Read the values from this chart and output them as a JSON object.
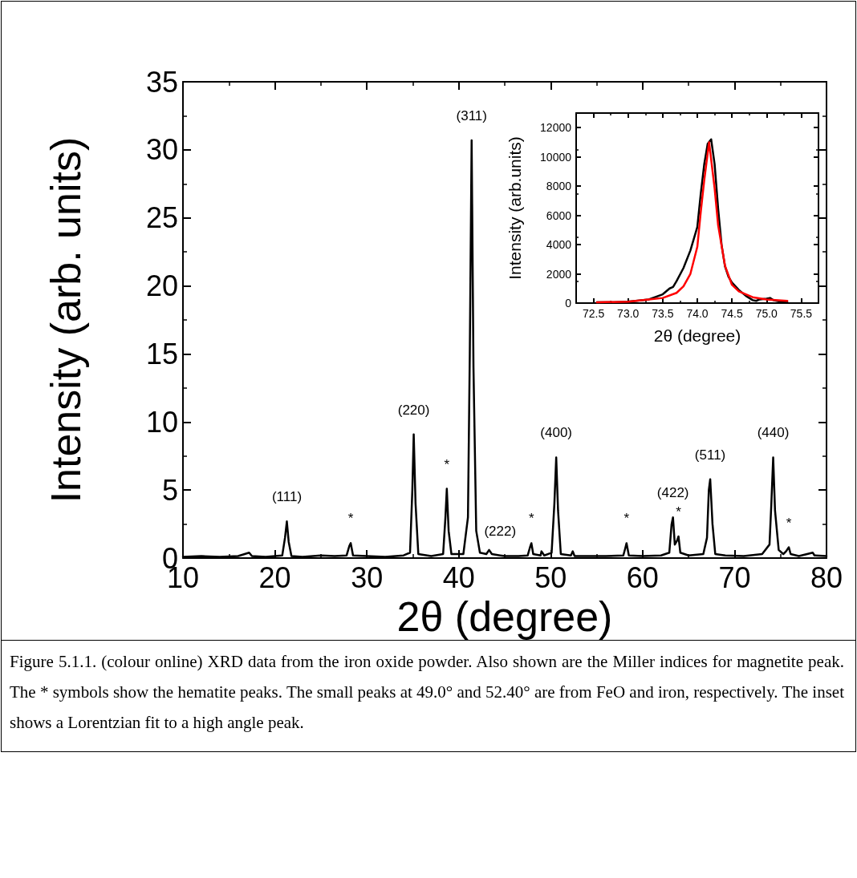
{
  "chart_data": [
    {
      "type": "line",
      "xlabel": "2θ (degree)",
      "ylabel": "Intensity (arb. units)",
      "xlim": [
        10,
        80
      ],
      "xticks": [
        10,
        20,
        30,
        40,
        50,
        60,
        70,
        80
      ],
      "ylim": [
        0,
        35
      ],
      "yticks": [
        0,
        5,
        10,
        15,
        20,
        25,
        30,
        35
      ],
      "grid": false,
      "marker": "none",
      "line_style": "solid",
      "series": [
        {
          "color": "#000000",
          "x": [
            10,
            12,
            14,
            16,
            17.2,
            17.5,
            19,
            20.8,
            21.1,
            21.3,
            21.5,
            21.8,
            23,
            25,
            26.5,
            27.8,
            28.1,
            28.25,
            28.5,
            30,
            32,
            34,
            34.7,
            34.95,
            35.1,
            35.3,
            35.6,
            37,
            38.3,
            38.55,
            38.7,
            38.9,
            39.2,
            40.5,
            41.0,
            41.2,
            41.4,
            41.6,
            41.9,
            42.3,
            43.0,
            43.3,
            43.6,
            44.5,
            45,
            46.5,
            47.5,
            47.75,
            47.9,
            48.1,
            48.9,
            49.0,
            49.3,
            50.1,
            50.4,
            50.6,
            50.8,
            51.1,
            52.2,
            52.4,
            52.6,
            54,
            56,
            57.9,
            58.1,
            58.25,
            58.5,
            60,
            62,
            62.9,
            63.15,
            63.3,
            63.5,
            63.75,
            63.9,
            64.1,
            65,
            66.6,
            67.0,
            67.2,
            67.35,
            67.6,
            67.9,
            69,
            71,
            73,
            73.8,
            74.0,
            74.2,
            74.4,
            74.8,
            75.3,
            75.6,
            75.9,
            76.1,
            77,
            78.5,
            78.7,
            80
          ],
          "values": [
            0.1,
            0.15,
            0.1,
            0.15,
            0.4,
            0.15,
            0.1,
            0.2,
            1.5,
            2.7,
            1.2,
            0.15,
            0.1,
            0.2,
            0.15,
            0.2,
            0.9,
            1.1,
            0.2,
            0.15,
            0.1,
            0.2,
            0.4,
            5,
            9.1,
            4,
            0.3,
            0.15,
            0.3,
            3,
            5.1,
            2,
            0.3,
            0.3,
            3,
            15,
            30.7,
            14,
            2,
            0.4,
            0.3,
            0.6,
            0.3,
            0.2,
            0.15,
            0.15,
            0.2,
            0.8,
            1.1,
            0.3,
            0.2,
            0.5,
            0.2,
            0.4,
            4,
            7.4,
            3.5,
            0.3,
            0.2,
            0.5,
            0.15,
            0.15,
            0.15,
            0.2,
            0.7,
            1.1,
            0.2,
            0.15,
            0.2,
            0.4,
            2.5,
            3.0,
            1.0,
            1.3,
            1.6,
            0.4,
            0.2,
            0.3,
            1.5,
            5,
            5.8,
            2.5,
            0.3,
            0.2,
            0.15,
            0.3,
            1.0,
            4,
            7.4,
            3.5,
            0.6,
            0.3,
            0.5,
            0.8,
            0.3,
            0.15,
            0.4,
            0.2,
            0.15
          ]
        }
      ],
      "annotations": [
        {
          "text": "(111)",
          "x": 21.3,
          "y": 2.7
        },
        {
          "text": "*",
          "x": 28.25,
          "y": 1.1
        },
        {
          "text": "(220)",
          "x": 35.1,
          "y": 9.1
        },
        {
          "text": "*",
          "x": 38.7,
          "y": 5.1
        },
        {
          "text": "(311)",
          "x": 41.4,
          "y": 30.7
        },
        {
          "text": "(222)",
          "x": 44.5,
          "y": 0.2
        },
        {
          "text": "*",
          "x": 47.9,
          "y": 1.1
        },
        {
          "text": "(400)",
          "x": 50.6,
          "y": 7.4
        },
        {
          "text": "*",
          "x": 58.25,
          "y": 1.1
        },
        {
          "text": "(422)",
          "x": 63.3,
          "y": 3.0
        },
        {
          "text": "*",
          "x": 63.9,
          "y": 1.6
        },
        {
          "text": "(511)",
          "x": 67.35,
          "y": 5.8
        },
        {
          "text": "(440)",
          "x": 74.2,
          "y": 7.4
        },
        {
          "text": "*",
          "x": 75.9,
          "y": 0.8
        },
        "Figure 5.1.1. (colour online) XRD data from the iron oxide powder. Also shown are the Miller indices for magnetite peak. The * symbols show the hematite peaks. The small peaks at 49.0° and 52.40° are from FeO and iron, respectively. The inset shows a Lorentzian fit to a high angle peak."
      ]
    },
    {
      "type": "line",
      "xlabel": "2θ (degree)",
      "ylabel": "Intensity (arb.units)",
      "xlim": [
        72.25,
        75.75
      ],
      "xticks": [
        72.5,
        {
          "value": 73,
          "label": "73.0"
        },
        73.5,
        {
          "value": 74,
          "label": "74.0"
        },
        74.5,
        {
          "value": 75,
          "label": "75.0"
        },
        75.5
      ],
      "ylim": [
        0,
        13000
      ],
      "yticks": [
        0,
        2000,
        4000,
        6000,
        8000,
        10000,
        12000
      ],
      "grid": false,
      "marker": "none",
      "line_style": "solid",
      "series": [
        {
          "color": "#000000",
          "x": [
            72.55,
            72.8,
            73.0,
            73.3,
            73.5,
            73.6,
            73.65,
            73.7,
            73.8,
            73.9,
            74.0,
            74.05,
            74.1,
            74.15,
            74.2,
            74.25,
            74.3,
            74.35,
            74.4,
            74.45,
            74.5,
            74.6,
            74.7,
            74.8,
            74.85,
            74.9,
            75.0,
            75.05,
            75.1,
            75.2,
            75.3
          ],
          "values": [
            50,
            60,
            100,
            250,
            600,
            1000,
            1100,
            1500,
            2400,
            3600,
            5200,
            7500,
            9500,
            10900,
            11200,
            9500,
            6500,
            4000,
            2500,
            1800,
            1400,
            900,
            500,
            200,
            150,
            250,
            300,
            350,
            200,
            100,
            50
          ]
        },
        {
          "color": "#ff0000",
          "x": [
            72.55,
            73.0,
            73.3,
            73.5,
            73.7,
            73.8,
            73.9,
            74.0,
            74.05,
            74.1,
            74.17,
            74.25,
            74.3,
            74.4,
            74.5,
            74.6,
            74.8,
            75.0,
            75.3
          ],
          "values": [
            50,
            100,
            250,
            350,
            700,
            1150,
            2000,
            3850,
            6250,
            8400,
            11000,
            7850,
            5350,
            2550,
            1250,
            800,
            400,
            250,
            150
          ]
        }
      ]
    }
  ]
}
